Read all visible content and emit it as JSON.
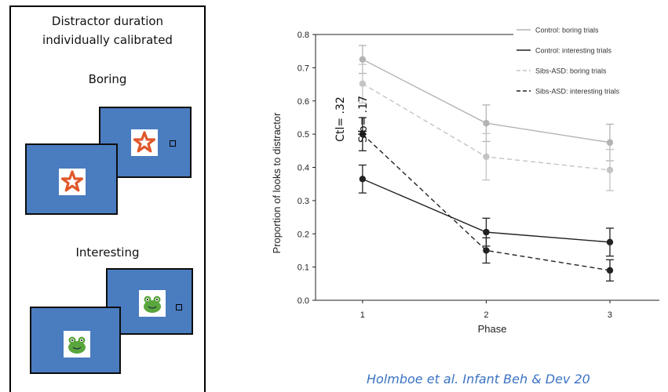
{
  "panel": {
    "title_line1": "Distractor duration",
    "title_line2": "individually calibrated",
    "boring_label": "Boring",
    "interesting_label": "Interesting"
  },
  "colors": {
    "screen_blue": "#4a7cc0",
    "star_orange": "#e0572a",
    "frog_green": "#5aa63c",
    "control_boring": "#b3b3b3",
    "control_interesting": "#222222",
    "sibs_boring": "#c4c4c4",
    "sibs_interesting": "#222222",
    "citation": "#3b73c4"
  },
  "annotations": {
    "ctl": "Ctl= .32",
    "sib": "Sib= .17"
  },
  "citation": "Holmboe et al. Infant Beh & Dev 20",
  "chart_data": {
    "type": "line",
    "x": [
      1,
      2,
      3
    ],
    "xlabel": "Phase",
    "ylabel": "Proportion of looks to distractor",
    "ylim": [
      0.0,
      0.8
    ],
    "yticks": [
      "0.0",
      "0.1",
      "0.2",
      "0.3",
      "0.4",
      "0.5",
      "0.6",
      "0.7",
      "0.8"
    ],
    "xticks": [
      "1",
      "2",
      "3"
    ],
    "legend_position": "top-right",
    "series": [
      {
        "name": "Control: boring trials",
        "values": [
          0.725,
          0.533,
          0.475
        ],
        "err": [
          0.042,
          0.055,
          0.055
        ],
        "color": "#b3b3b3",
        "dash": "solid"
      },
      {
        "name": "Control: interesting trials",
        "values": [
          0.365,
          0.205,
          0.175
        ],
        "err": [
          0.042,
          0.042,
          0.042
        ],
        "color": "#222222",
        "dash": "solid"
      },
      {
        "name": "Sibs-ASD: boring trials",
        "values": [
          0.652,
          0.432,
          0.392
        ],
        "err": [
          0.058,
          0.07,
          0.062
        ],
        "color": "#c4c4c4",
        "dash": "dashed"
      },
      {
        "name": "Sibs-ASD: interesting trials",
        "values": [
          0.5,
          0.15,
          0.09
        ],
        "err": [
          0.05,
          0.038,
          0.032
        ],
        "color": "#222222",
        "dash": "dashed"
      }
    ]
  }
}
